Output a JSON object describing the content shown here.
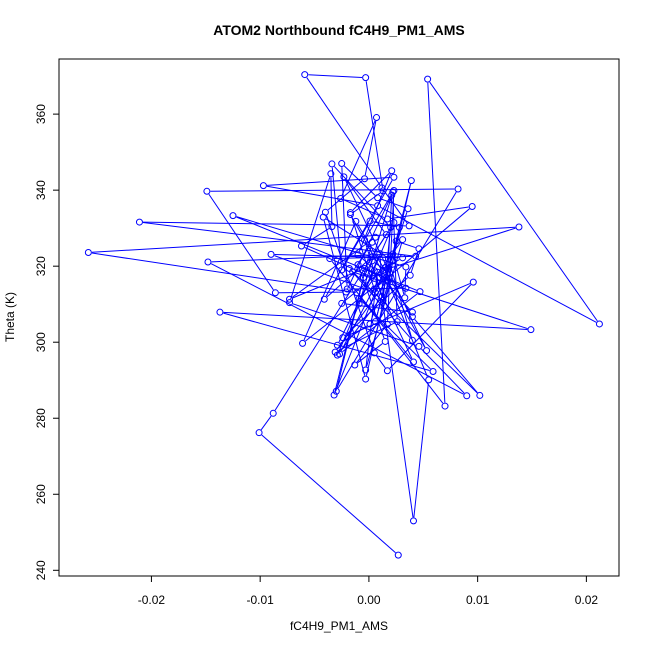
{
  "chart_data": {
    "type": "scatter",
    "title": "ATOM2 Northbound fC4H9_PM1_AMS",
    "xlabel": "fC4H9_PM1_AMS",
    "ylabel": "Theta (K)",
    "xlim": [
      -0.0285,
      0.023
    ],
    "ylim": [
      238.5,
      374.5
    ],
    "xticks": [
      -0.02,
      -0.01,
      0.0,
      0.01,
      0.02
    ],
    "xtick_labels": [
      "-0.02",
      "-0.01",
      "0.00",
      "0.01",
      "0.02"
    ],
    "yticks": [
      240,
      260,
      280,
      300,
      320,
      340,
      360
    ],
    "ytick_labels": [
      "240",
      "260",
      "280",
      "300",
      "320",
      "340",
      "360"
    ],
    "grid": false,
    "connect_points": true,
    "series_color": "#0000ff",
    "points": [
      [
        0.0027,
        244.0
      ],
      [
        -0.0101,
        276.2
      ],
      [
        -0.0088,
        281.3
      ],
      [
        0.0023,
        331.5
      ],
      [
        -0.0029,
        296.6
      ],
      [
        0.0012,
        312.0
      ],
      [
        0.0041,
        253.0
      ],
      [
        0.0055,
        290.1
      ],
      [
        0.0016,
        317.1
      ],
      [
        -0.0061,
        299.7
      ],
      [
        -0.0012,
        331.8
      ],
      [
        0.004,
        306.7
      ],
      [
        0.0102,
        286.0
      ],
      [
        -0.0018,
        319.4
      ],
      [
        0.004,
        300.5
      ],
      [
        0.0018,
        321.9
      ],
      [
        -0.0032,
        286.1
      ],
      [
        0.0003,
        326.3
      ],
      [
        -0.0015,
        318.5
      ],
      [
        0.0149,
        303.3
      ],
      [
        -0.0137,
        307.9
      ],
      [
        0.0059,
        292.3
      ],
      [
        -0.0009,
        311.5
      ],
      [
        0.0031,
        327.0
      ],
      [
        -0.0003,
        292.7
      ],
      [
        0.0008,
        318.4
      ],
      [
        -0.001,
        323.0
      ],
      [
        0.0021,
        345.1
      ],
      [
        -0.0017,
        334.1
      ],
      [
        0.0006,
        313.0
      ],
      [
        -0.009,
        323.1
      ],
      [
        0.0031,
        322.2
      ],
      [
        0.0015,
        319.6
      ],
      [
        -0.0025,
        310.2
      ],
      [
        0.004,
        307.9
      ],
      [
        0.0005,
        318.8
      ],
      [
        -0.0029,
        299.2
      ],
      [
        0.0001,
        304.8
      ],
      [
        0.0036,
        335.1
      ],
      [
        0.0008,
        338.0
      ],
      [
        -0.0025,
        347.0
      ],
      [
        -0.002,
        314.0
      ],
      [
        0.0034,
        314.2
      ],
      [
        -0.001,
        320.4
      ],
      [
        0.0015,
        300.2
      ],
      [
        -0.0013,
        294.0
      ],
      [
        0.0017,
        304.7
      ],
      [
        0.0023,
        339.9
      ],
      [
        -0.0004,
        326.9
      ],
      [
        0.0013,
        311.0
      ],
      [
        0.002,
        330.2
      ],
      [
        -0.0034,
        346.9
      ],
      [
        -0.0025,
        319.0
      ],
      [
        0.0001,
        331.9
      ],
      [
        0.0028,
        330.2
      ],
      [
        0.0014,
        309.5
      ],
      [
        0.001,
        323.3
      ],
      [
        -0.0009,
        310.1
      ],
      [
        0.0022,
        339.5
      ],
      [
        0.0026,
        305.4
      ],
      [
        -0.0031,
        297.4
      ],
      [
        0.0017,
        316.4
      ],
      [
        0.0021,
        338.7
      ],
      [
        -0.0021,
        313.2
      ],
      [
        -0.0086,
        313.0
      ],
      [
        -0.0149,
        339.7
      ],
      [
        0.0082,
        340.3
      ],
      [
        -0.003,
        287.1
      ],
      [
        -0.0005,
        317.0
      ],
      [
        0.0003,
        321.4
      ],
      [
        0.0019,
        318.2
      ],
      [
        0.0005,
        314.0
      ],
      [
        0.0095,
        335.7
      ],
      [
        0.0017,
        332.4
      ],
      [
        -0.0026,
        337.8
      ],
      [
        0.0007,
        359.1
      ],
      [
        -0.0004,
        343.0
      ],
      [
        -0.004,
        334.2
      ],
      [
        0.0005,
        297.2
      ],
      [
        0.0017,
        292.5
      ],
      [
        0.0096,
        315.8
      ],
      [
        -0.0024,
        301.2
      ],
      [
        0.0038,
        317.6
      ],
      [
        0.0046,
        324.6
      ],
      [
        0.0025,
        326.6
      ],
      [
        0.0006,
        305.4
      ],
      [
        0.0039,
        342.5
      ],
      [
        -0.0003,
        290.3
      ],
      [
        -0.0042,
        332.9
      ],
      [
        0.0022,
        321.4
      ],
      [
        0.0013,
        318.9
      ],
      [
        0.0138,
        330.3
      ],
      [
        -0.0258,
        323.6
      ],
      [
        -0.0011,
        313.0
      ],
      [
        0.007,
        283.2
      ],
      [
        0.0054,
        369.2
      ],
      [
        0.0212,
        304.8
      ],
      [
        0.0008,
        335.9
      ],
      [
        -0.0097,
        341.2
      ],
      [
        0.0023,
        343.4
      ],
      [
        -0.0041,
        311.3
      ],
      [
        0.0003,
        322.5
      ],
      [
        0.0016,
        328.3
      ],
      [
        -0.0023,
        343.5
      ],
      [
        0.0053,
        297.8
      ],
      [
        -0.0017,
        333.6
      ],
      [
        0.0013,
        339.8
      ],
      [
        -0.0003,
        369.6
      ],
      [
        -0.0059,
        370.4
      ],
      [
        0.0012,
        340.6
      ],
      [
        0.0037,
        330.6
      ],
      [
        -0.0211,
        331.6
      ],
      [
        0.0043,
        322.6
      ],
      [
        -0.0036,
        322.0
      ],
      [
        0.0041,
        294.8
      ],
      [
        0.0005,
        316.8
      ],
      [
        -0.0062,
        325.3
      ],
      [
        -0.0034,
        330.4
      ],
      [
        -0.0035,
        344.3
      ],
      [
        -0.0073,
        310.4
      ],
      [
        0.0046,
        298.9
      ],
      [
        0.009,
        285.9
      ],
      [
        -0.0148,
        321.1
      ],
      [
        0.0022,
        323.2
      ],
      [
        0.0033,
        311.7
      ],
      [
        0.0034,
        319.8
      ],
      [
        -0.0125,
        333.3
      ],
      [
        0.0047,
        313.3
      ],
      [
        -0.0027,
        296.9
      ],
      [
        0.001,
        317.1
      ],
      [
        -0.0004,
        319.4
      ],
      [
        -0.0073,
        311.3
      ],
      [
        0.0006,
        327.6
      ]
    ]
  }
}
